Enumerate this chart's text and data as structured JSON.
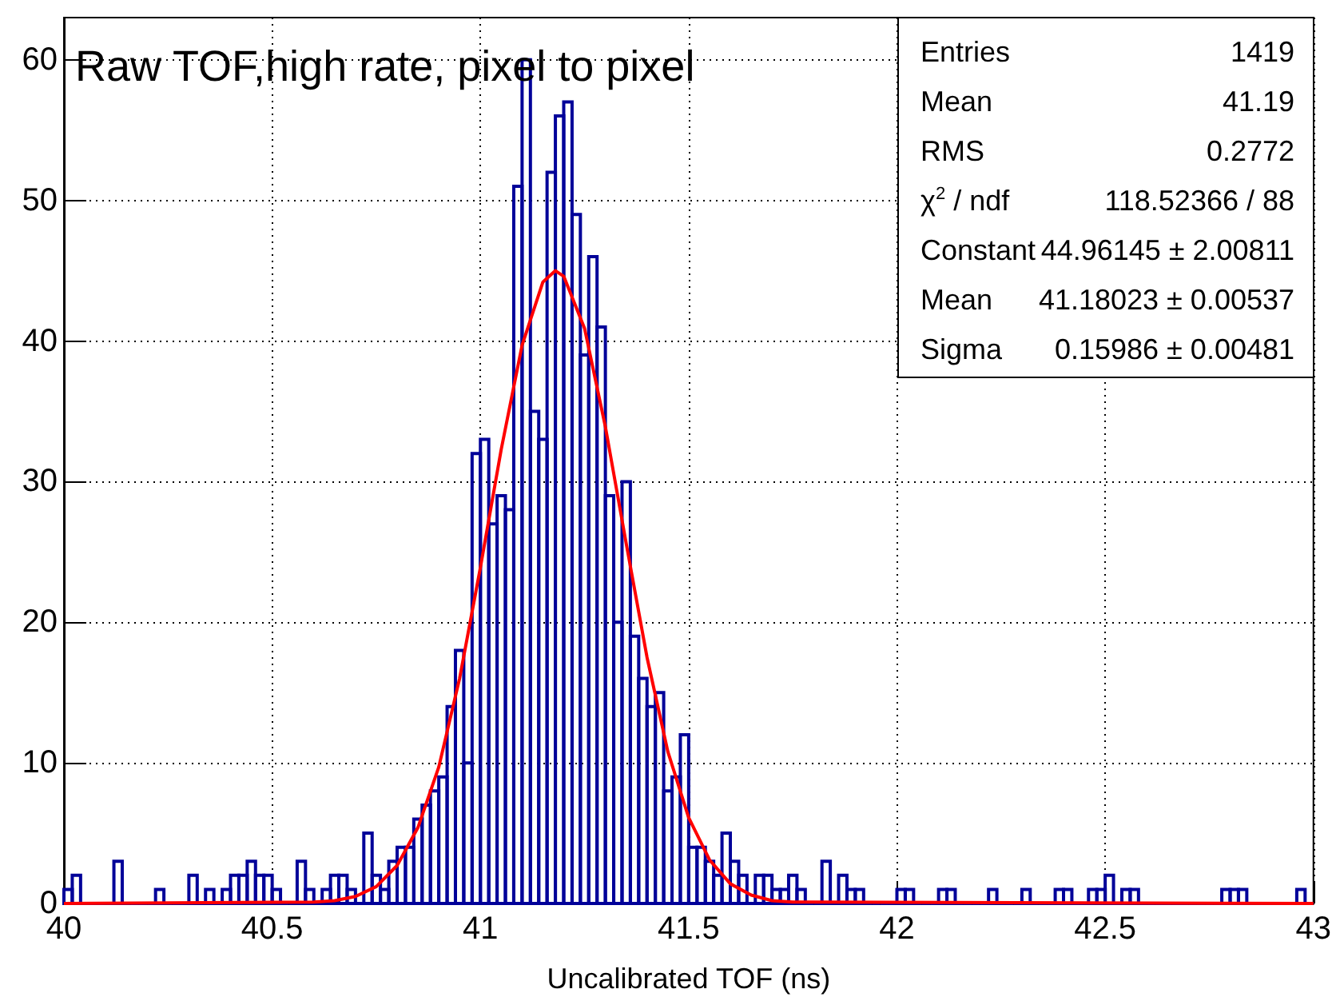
{
  "chart_data": {
    "type": "histogram",
    "title": "Raw TOF,high rate, pixel to pixel",
    "xlabel": "Uncalibrated TOF (ns)",
    "bins": [
      40,
      40.02,
      40.04,
      40.06,
      40.08,
      40.1,
      40.12,
      40.14,
      40.16,
      40.18,
      40.2,
      40.22,
      40.24,
      40.26,
      40.28,
      40.3,
      40.32,
      40.34,
      40.36,
      40.38,
      40.4,
      40.42,
      40.44,
      40.46,
      40.48,
      40.5,
      40.52,
      40.54,
      40.56,
      40.58,
      40.6,
      40.62,
      40.64,
      40.66,
      40.68,
      40.7,
      40.72,
      40.74,
      40.76,
      40.78,
      40.8,
      40.82,
      40.84,
      40.86,
      40.88,
      40.9,
      40.92,
      40.94,
      40.96,
      40.98,
      41,
      41.02,
      41.04,
      41.06,
      41.08,
      41.1,
      41.12,
      41.14,
      41.16,
      41.18,
      41.2,
      41.22,
      41.24,
      41.26,
      41.28,
      41.3,
      41.32,
      41.34,
      41.36,
      41.38,
      41.4,
      41.42,
      41.44,
      41.46,
      41.48,
      41.5,
      41.52,
      41.54,
      41.56,
      41.58,
      41.6,
      41.62,
      41.64,
      41.66,
      41.68,
      41.7,
      41.72,
      41.74,
      41.76,
      41.78,
      41.8,
      41.82,
      41.84,
      41.86,
      41.88,
      41.9,
      41.92,
      41.94,
      41.96,
      41.98,
      42,
      42.02,
      42.04,
      42.06,
      42.08,
      42.1,
      42.12,
      42.14,
      42.16,
      42.18,
      42.2,
      42.22,
      42.24,
      42.26,
      42.28,
      42.3,
      42.32,
      42.34,
      42.36,
      42.38,
      42.4,
      42.42,
      42.44,
      42.46,
      42.48,
      42.5,
      42.52,
      42.54,
      42.56,
      42.58,
      42.6,
      42.62,
      42.64,
      42.66,
      42.68,
      42.7,
      42.72,
      42.74,
      42.76,
      42.78,
      42.8,
      42.82,
      42.84,
      42.86,
      42.88,
      42.9,
      42.92,
      42.94,
      42.96,
      42.98,
      43
    ],
    "values": [
      1,
      2,
      0,
      0,
      0,
      0,
      3,
      0,
      0,
      0,
      0,
      1,
      0,
      0,
      0,
      2,
      0,
      1,
      0,
      1,
      2,
      2,
      3,
      2,
      2,
      1,
      0,
      0,
      3,
      1,
      0,
      1,
      2,
      2,
      1,
      0,
      5,
      2,
      1,
      3,
      4,
      4,
      6,
      7,
      8,
      9,
      14,
      18,
      10,
      32,
      33,
      27,
      29,
      28,
      51,
      60,
      35,
      33,
      52,
      56,
      57,
      49,
      39,
      46,
      41,
      29,
      20,
      30,
      19,
      16,
      14,
      15,
      8,
      9,
      12,
      4,
      4,
      3,
      2,
      5,
      3,
      2,
      0,
      2,
      2,
      1,
      1,
      2,
      1,
      0,
      0,
      3,
      0,
      2,
      1,
      1,
      0,
      0,
      0,
      0,
      1,
      1,
      0,
      0,
      0,
      1,
      1,
      0,
      0,
      0,
      0,
      1,
      0,
      0,
      0,
      1,
      0,
      0,
      0,
      1,
      1,
      0,
      0,
      1,
      1,
      2,
      0,
      1,
      1,
      0,
      0,
      0,
      0,
      0,
      0,
      0,
      0,
      0,
      0,
      1,
      1,
      1,
      0,
      0,
      0,
      0,
      0,
      0,
      1,
      0
    ],
    "color": "#000099",
    "series": [
      {
        "type": "line",
        "color": "#ff0000",
        "x": [
          40,
          40.6,
          40.65,
          40.7,
          40.75,
          40.8,
          40.85,
          40.9,
          40.95,
          41,
          41.05,
          41.1,
          41.15,
          41.18,
          41.2,
          41.25,
          41.3,
          41.35,
          41.4,
          41.45,
          41.5,
          41.55,
          41.6,
          41.65,
          41.7,
          41.75,
          43
        ],
        "values": [
          0,
          0.1,
          0.2,
          0.5,
          1.2,
          2.7,
          5.4,
          9.7,
          16,
          23.9,
          32.3,
          39.7,
          44.2,
          45,
          44.6,
          40.9,
          33.9,
          25.6,
          17.5,
          10.8,
          6.1,
          3.1,
          1.4,
          0.6,
          0.2,
          0.1,
          0
        ]
      }
    ],
    "marker": "none",
    "xlim": [
      40,
      43
    ],
    "xticks": [
      40,
      40.5,
      41,
      41.5,
      42,
      42.5,
      43
    ],
    "ylim": [
      0,
      63
    ],
    "yticks": [
      0,
      10,
      20,
      30,
      40,
      50,
      60
    ],
    "grid": true,
    "annotations": [
      "Entries",
      "1419",
      "Mean",
      "41.19",
      "RMS",
      "0.2772",
      "χ$^{2}$ / ndf",
      "118.52366 / 88",
      "Constant",
      "44.96145 ± 2.00811",
      "Mean",
      "41.18023 ± 0.00537",
      "Sigma",
      "0.15986 ± 0.00481"
    ]
  }
}
